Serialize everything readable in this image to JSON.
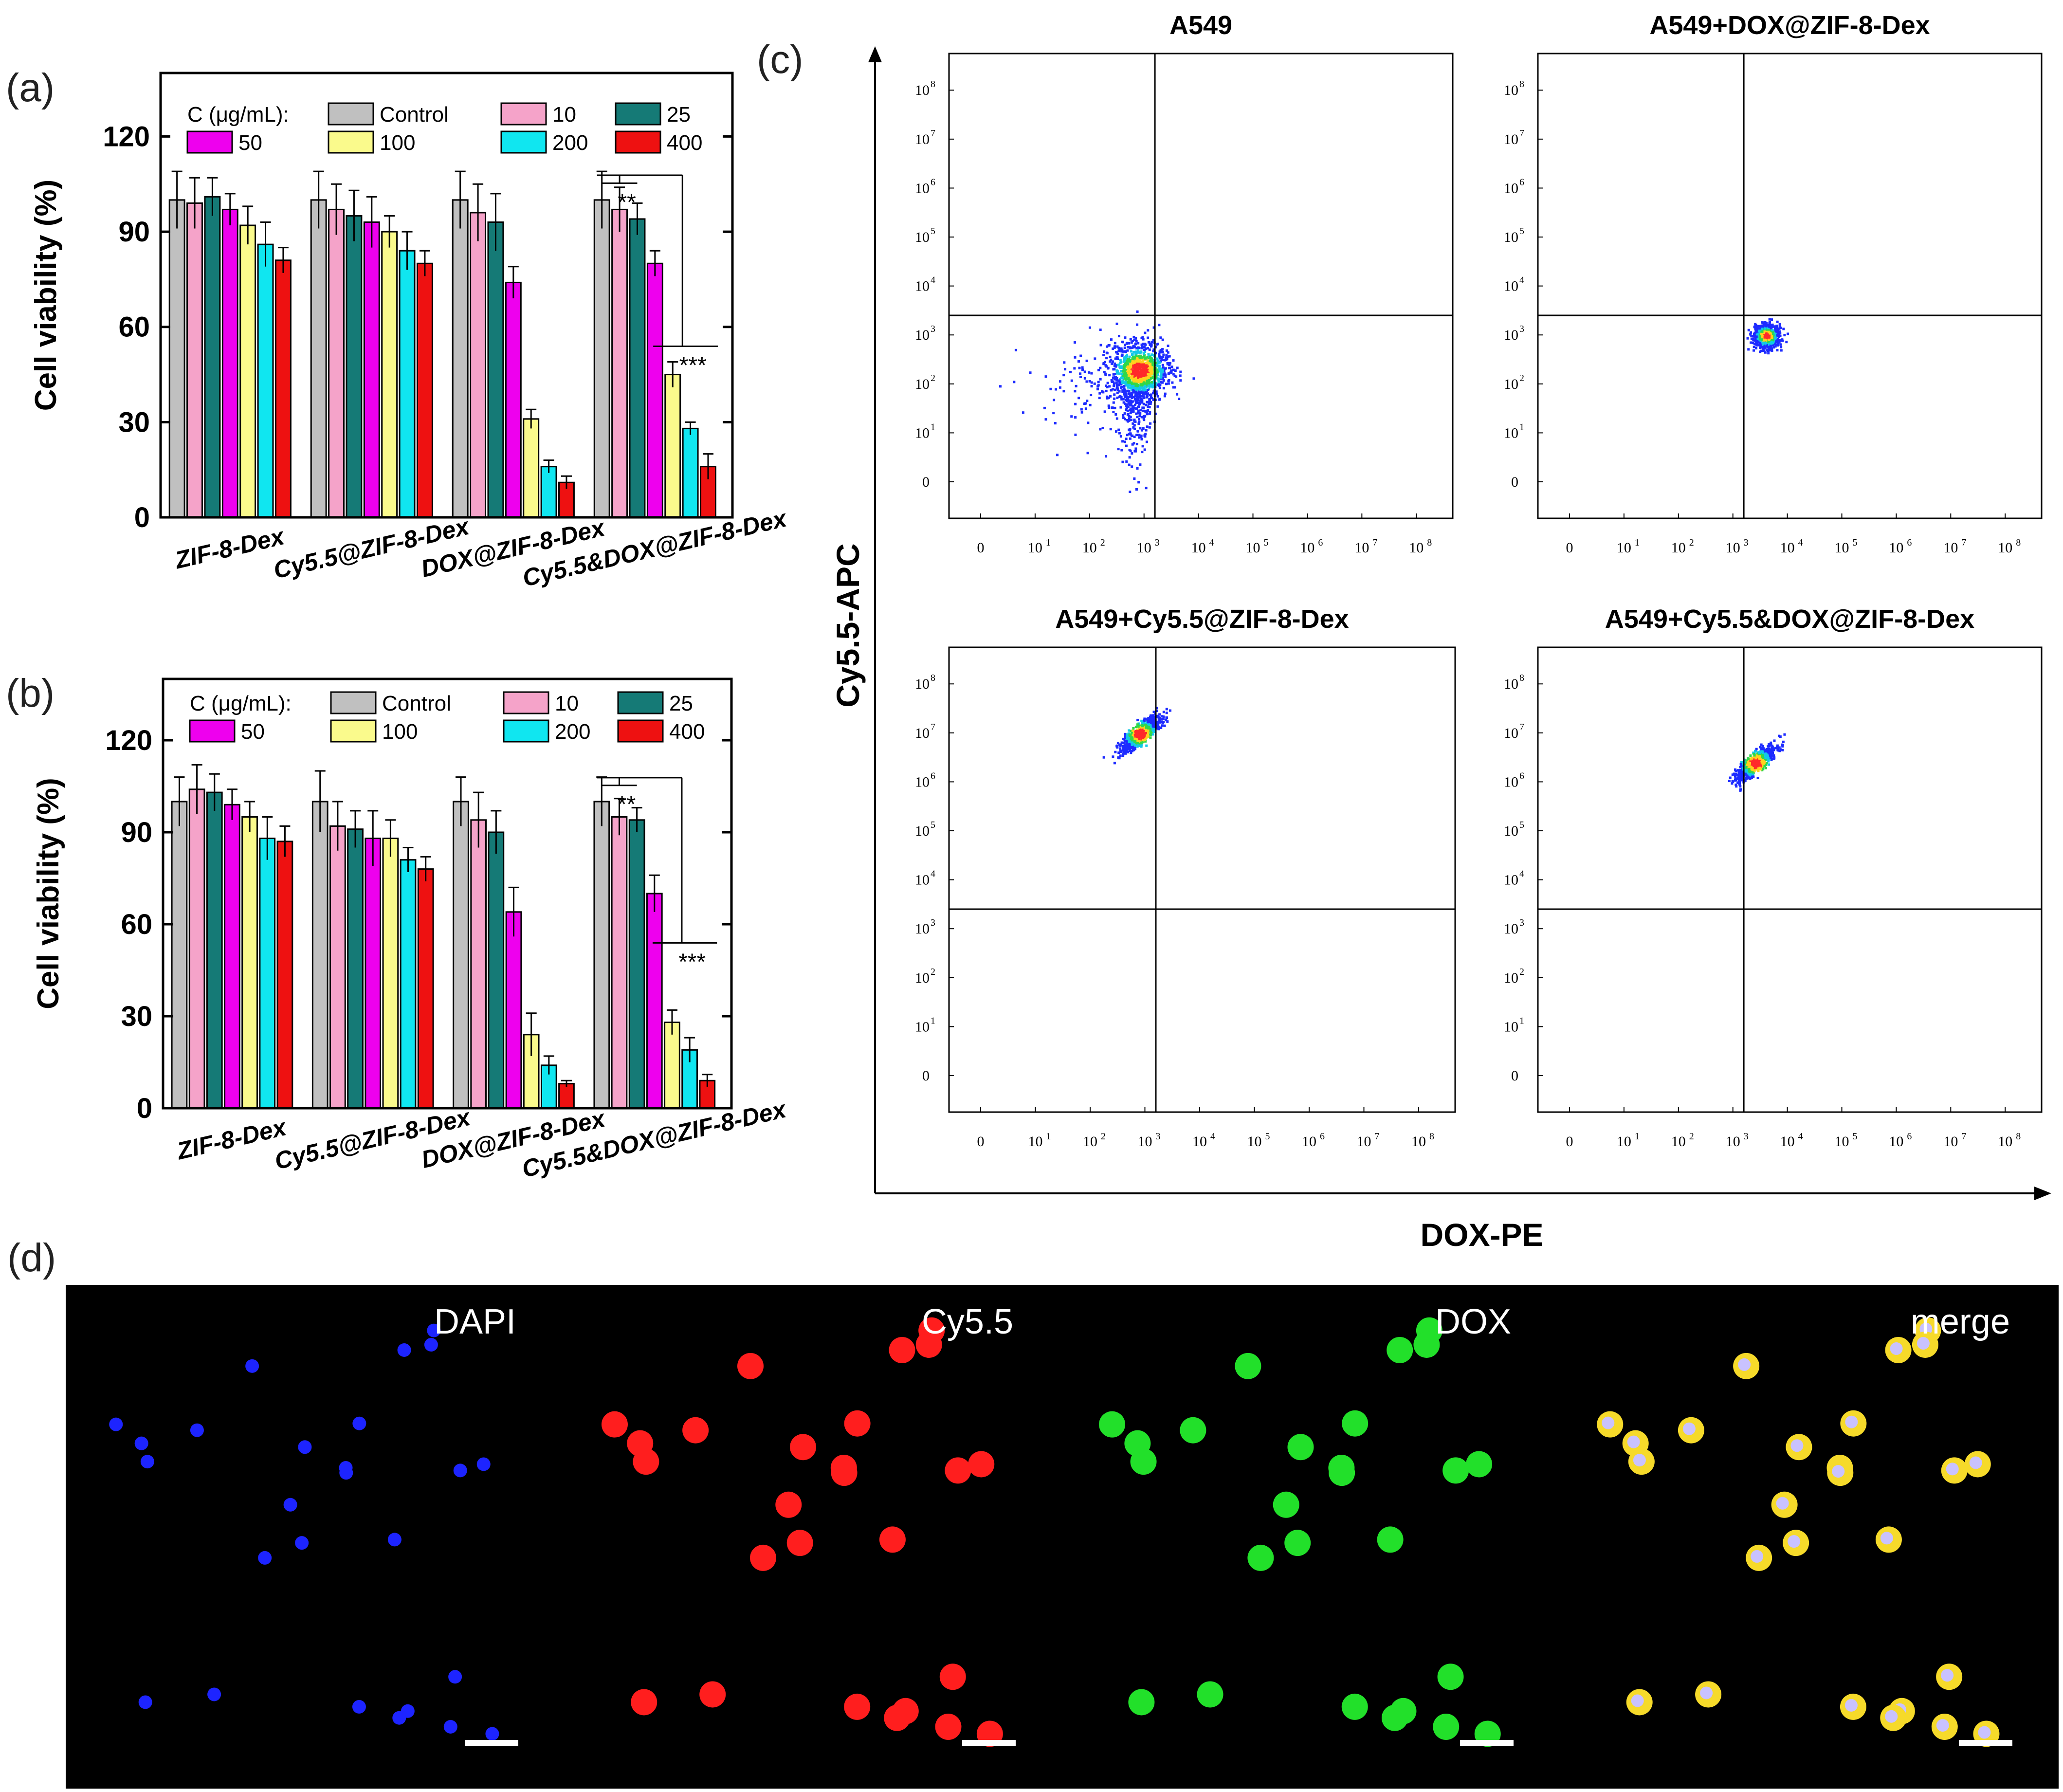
{
  "chart_data": [
    {
      "panel_label": "(a)",
      "type": "bar",
      "ylabel": "Cell viability (%)",
      "yticks": [
        "0",
        "30",
        "60",
        "90",
        "120"
      ],
      "ylim": [
        0,
        140
      ],
      "legend_title": "C (μg/mL):",
      "categories": [
        "ZIF-8-Dex",
        "Cy5.5@ZIF-8-Dex",
        "DOX@ZIF-8-Dex",
        "Cy5.5&DOX@ZIF-8-Dex"
      ],
      "series": [
        {
          "name": "Control",
          "color": "#c0c0c0",
          "values": [
            100,
            100,
            100,
            100
          ],
          "errors": [
            9,
            9,
            9,
            9
          ]
        },
        {
          "name": "10",
          "color": "#f5a3c9",
          "values": [
            99,
            97,
            96,
            97
          ],
          "errors": [
            8,
            8,
            9,
            7
          ]
        },
        {
          "name": "25",
          "color": "#157a76",
          "values": [
            101,
            95,
            93,
            94
          ],
          "errors": [
            6,
            8,
            9,
            5
          ]
        },
        {
          "name": "50",
          "color": "#ee00ee",
          "values": [
            97,
            93,
            74,
            80
          ],
          "errors": [
            5,
            8,
            5,
            4
          ]
        },
        {
          "name": "100",
          "color": "#fafa8c",
          "values": [
            92,
            90,
            31,
            45
          ],
          "errors": [
            6,
            5,
            3,
            4
          ]
        },
        {
          "name": "200",
          "color": "#10e6f0",
          "values": [
            86,
            84,
            16,
            28
          ],
          "errors": [
            7,
            6,
            2,
            2
          ]
        },
        {
          "name": "400",
          "color": "#ee1111",
          "values": [
            81,
            80,
            11,
            16
          ],
          "errors": [
            4,
            4,
            2,
            4
          ]
        }
      ],
      "annotations": [
        "**",
        "***"
      ]
    },
    {
      "panel_label": "(b)",
      "type": "bar",
      "ylabel": "Cell viability (%)",
      "yticks": [
        "0",
        "30",
        "60",
        "90",
        "120"
      ],
      "ylim": [
        0,
        140
      ],
      "legend_title": "C (μg/mL):",
      "categories": [
        "ZIF-8-Dex",
        "Cy5.5@ZIF-8-Dex",
        "DOX@ZIF-8-Dex",
        "Cy5.5&DOX@ZIF-8-Dex"
      ],
      "series": [
        {
          "name": "Control",
          "color": "#c0c0c0",
          "values": [
            100,
            100,
            100,
            100
          ],
          "errors": [
            8,
            10,
            8,
            8
          ]
        },
        {
          "name": "10",
          "color": "#f5a3c9",
          "values": [
            104,
            92,
            94,
            95
          ],
          "errors": [
            8,
            8,
            9,
            6
          ]
        },
        {
          "name": "25",
          "color": "#157a76",
          "values": [
            103,
            91,
            90,
            94
          ],
          "errors": [
            6,
            6,
            7,
            4
          ]
        },
        {
          "name": "50",
          "color": "#ee00ee",
          "values": [
            99,
            88,
            64,
            70
          ],
          "errors": [
            5,
            9,
            8,
            6
          ]
        },
        {
          "name": "100",
          "color": "#fafa8c",
          "values": [
            95,
            88,
            24,
            28
          ],
          "errors": [
            5,
            6,
            7,
            4
          ]
        },
        {
          "name": "200",
          "color": "#10e6f0",
          "values": [
            88,
            81,
            14,
            19
          ],
          "errors": [
            7,
            4,
            3,
            4
          ]
        },
        {
          "name": "400",
          "color": "#ee1111",
          "values": [
            87,
            78,
            8,
            9
          ],
          "errors": [
            5,
            4,
            1,
            2
          ]
        }
      ],
      "annotations": [
        "**",
        "***"
      ]
    },
    {
      "panel_label": "(c)",
      "type": "scatter",
      "xlabel": "DOX-PE",
      "ylabel": "Cy5.5-APC",
      "log_ticks": [
        "0",
        "10",
        "10",
        "10",
        "10",
        "10",
        "10",
        "10",
        "10"
      ],
      "log_exponents": [
        "",
        "1",
        "2",
        "3",
        "4",
        "5",
        "6",
        "7",
        "8"
      ],
      "plots": [
        {
          "title": "A549",
          "cluster_center": [
            2.9,
            2.3
          ],
          "gate": [
            3.2,
            3.4
          ]
        },
        {
          "title": "A549+DOX@ZIF-8-Dex",
          "cluster_center": [
            3.6,
            3.0
          ],
          "gate": [
            3.2,
            3.4
          ]
        },
        {
          "title": "A549+Cy5.5@ZIF-8-Dex",
          "cluster_center": [
            2.9,
            7.0
          ],
          "gate": [
            3.2,
            3.4
          ]
        },
        {
          "title": "A549+Cy5.5&DOX@ZIF-8-Dex",
          "cluster_center": [
            3.4,
            6.4
          ],
          "gate": [
            3.2,
            3.4
          ]
        }
      ]
    }
  ],
  "panel_d": {
    "label": "(d)",
    "channels": [
      "DAPI",
      "Cy5.5",
      "DOX",
      "merge"
    ],
    "channel_colors": [
      "#1d24ff",
      "#ff1e1e",
      "#22e02a",
      "#f6da2a"
    ]
  }
}
